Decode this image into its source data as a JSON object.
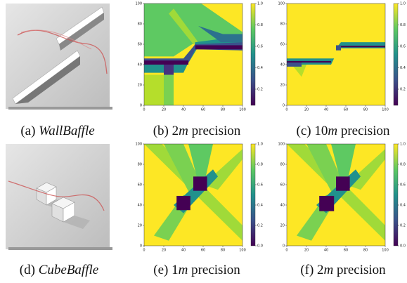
{
  "panels": [
    {
      "label": "(a)",
      "name": "WallBaffle"
    },
    {
      "label": "(b)",
      "value": "2",
      "unit": "m",
      "word": "precision"
    },
    {
      "label": "(c)",
      "value": "10",
      "unit": "m",
      "word": "precision"
    },
    {
      "label": "(d)",
      "name": "CubeBaffle"
    },
    {
      "label": "(e)",
      "value": "1",
      "unit": "m",
      "word": "precision"
    },
    {
      "label": "(f)",
      "value": "2",
      "unit": "m",
      "word": "precision"
    }
  ],
  "heatmaps": [
    {
      "xticks": [
        "0",
        "20",
        "40",
        "60",
        "80",
        "100"
      ],
      "yticks": [
        "0",
        "20",
        "40",
        "60",
        "80",
        "100"
      ],
      "colorbar_ticks": [
        "1.0",
        "0.8",
        "0.6",
        "0.4",
        "0.2"
      ]
    },
    {
      "xticks": [
        "0",
        "20",
        "40",
        "60",
        "80",
        "100"
      ],
      "yticks": [
        "0",
        "20",
        "40",
        "60",
        "80",
        "100"
      ],
      "colorbar_ticks": [
        "1.0",
        "0.8",
        "0.6",
        "0.4",
        "0.2"
      ]
    },
    {
      "xticks": [
        "0",
        "20",
        "40",
        "60",
        "80",
        "100"
      ],
      "yticks": [
        "0",
        "20",
        "40",
        "60",
        "80",
        "100"
      ],
      "colorbar_ticks": [
        "1.0",
        "0.8",
        "0.6",
        "0.4",
        "0.2",
        "0.0"
      ]
    },
    {
      "xticks": [
        "0",
        "20",
        "40",
        "60",
        "80",
        "100"
      ],
      "yticks": [
        "0",
        "20",
        "40",
        "60",
        "80",
        "100"
      ],
      "colorbar_ticks": [
        "1.0",
        "0.8",
        "0.6",
        "0.4",
        "0.2",
        "0.0"
      ]
    }
  ]
}
